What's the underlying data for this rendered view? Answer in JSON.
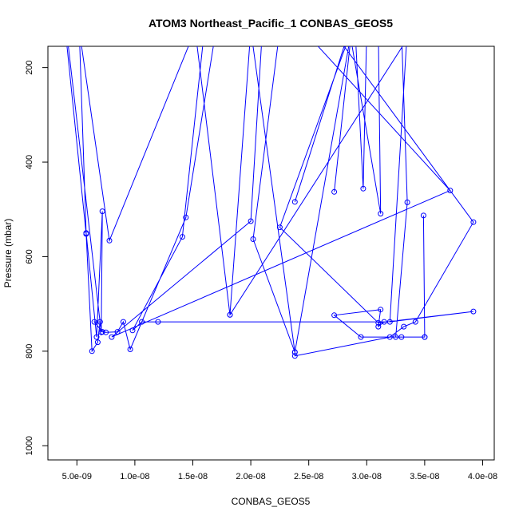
{
  "chart_data": {
    "type": "line",
    "title": "ATOM3 Northeast_Pacific_1 CONBAS_GEOS5",
    "xlabel": "CONBAS_GEOS5",
    "ylabel": "Pressure (mbar)",
    "xlim": [
      2.5e-09,
      4.1e-08
    ],
    "ylim": [
      1030,
      155
    ],
    "y_reversed": true,
    "grid": false,
    "x_ticks": [
      {
        "value": 5e-09,
        "label": "5.0e-09"
      },
      {
        "value": 1e-08,
        "label": "1.0e-08"
      },
      {
        "value": 1.5e-08,
        "label": "1.5e-08"
      },
      {
        "value": 2e-08,
        "label": "2.0e-08"
      },
      {
        "value": 2.5e-08,
        "label": "2.5e-08"
      },
      {
        "value": 3e-08,
        "label": "3.0e-08"
      },
      {
        "value": 3.5e-08,
        "label": "3.5e-08"
      },
      {
        "value": 4e-08,
        "label": "4.0e-08"
      }
    ],
    "y_ticks": [
      {
        "value": 200,
        "label": "200"
      },
      {
        "value": 400,
        "label": "400"
      },
      {
        "value": 600,
        "label": "600"
      },
      {
        "value": 800,
        "label": "800"
      },
      {
        "value": 1000,
        "label": "1000"
      }
    ],
    "series": [
      {
        "color": "#0000ff",
        "marker": "open-circle",
        "points": [
          [
            4e-09,
            120
          ],
          [
            5.8e-09,
            552
          ],
          [
            6.3e-09,
            800
          ],
          [
            6.8e-09,
            781
          ],
          [
            7e-09,
            738
          ],
          [
            6.5e-09,
            738
          ],
          [
            7.2e-09,
            759
          ],
          [
            7.5e-09,
            760
          ],
          [
            8.5e-09,
            759
          ],
          [
            9e-09,
            738
          ],
          [
            9.6e-09,
            796
          ],
          [
            1.44e-08,
            517
          ],
          [
            1.7e-08,
            120
          ],
          [
            1.6e-08,
            120
          ],
          [
            1.41e-08,
            558
          ],
          [
            9.8e-09,
            756
          ],
          [
            1.06e-08,
            738
          ],
          [
            1.2e-08,
            738
          ],
          [
            3.15e-08,
            738
          ],
          [
            3.1e-08,
            748
          ],
          [
            3.12e-08,
            712
          ],
          [
            2.72e-08,
            724
          ],
          [
            2.95e-08,
            770
          ],
          [
            3.3e-08,
            770
          ],
          [
            3.5e-08,
            770
          ],
          [
            3.49e-08,
            513
          ],
          [
            3.5e-08,
            770
          ],
          [
            3.25e-08,
            770
          ],
          [
            3.35e-08,
            485
          ],
          [
            3.3e-08,
            120
          ],
          [
            3.1e-08,
            120
          ],
          [
            3.12e-08,
            509
          ],
          [
            2.85e-08,
            120
          ],
          [
            2.38e-08,
            484
          ],
          [
            2.85e-08,
            120
          ],
          [
            2.1e-08,
            120
          ],
          [
            2e-08,
            525
          ],
          [
            8e-09,
            770
          ],
          [
            3.72e-08,
            460
          ],
          [
            2.45e-08,
            120
          ],
          [
            2.7e-08,
            120
          ],
          [
            3.92e-08,
            527
          ],
          [
            3.42e-08,
            738
          ],
          [
            3.32e-08,
            748
          ],
          [
            3.2e-08,
            770
          ],
          [
            2.38e-08,
            810
          ],
          [
            2.38e-08,
            802
          ],
          [
            2.87e-08,
            120
          ],
          [
            2.72e-08,
            463
          ],
          [
            2.87e-08,
            120
          ],
          [
            2.25e-08,
            538
          ],
          [
            3.1e-08,
            740
          ],
          [
            3.92e-08,
            716
          ],
          [
            3.2e-08,
            738
          ],
          [
            3.35e-08,
            120
          ],
          [
            3e-08,
            120
          ],
          [
            2.97e-08,
            456
          ],
          [
            2.9e-08,
            120
          ],
          [
            2.88e-08,
            120
          ],
          [
            2.25e-08,
            120
          ],
          [
            2.02e-08,
            563
          ],
          [
            2.38e-08,
            802
          ],
          [
            2e-08,
            120
          ],
          [
            1.82e-08,
            723
          ],
          [
            3.4e-08,
            120
          ],
          [
            1.82e-08,
            723
          ],
          [
            1.52e-08,
            120
          ],
          [
            7.8e-09,
            566
          ],
          [
            5.2e-09,
            120
          ],
          [
            5.8e-09,
            550
          ],
          [
            6.7e-09,
            770
          ],
          [
            7.2e-09,
            504
          ],
          [
            7.1e-09,
            760
          ],
          [
            4.1e-09,
            120
          ]
        ]
      }
    ]
  }
}
